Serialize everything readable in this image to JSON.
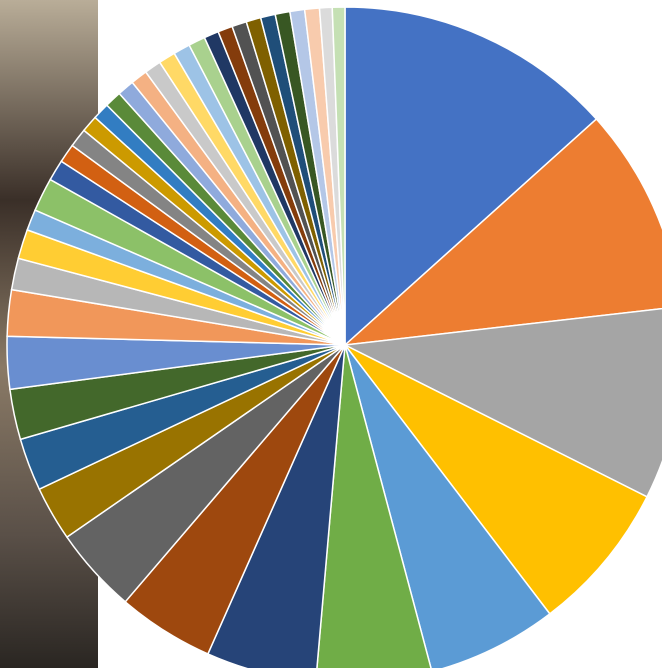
{
  "chart_data": {
    "type": "pie",
    "values": [
      13.3,
      9.8,
      9.2,
      7.2,
      6.2,
      5.5,
      5.25,
      4.6,
      4.1,
      2.6,
      2.5,
      2.4,
      2.5,
      2.2,
      1.5,
      1.4,
      1.0,
      1.6,
      1.0,
      0.9,
      0.9,
      0.8,
      0.8,
      0.8,
      0.8,
      0.8,
      0.8,
      0.8,
      0.8,
      0.8,
      0.7,
      0.7,
      0.7,
      0.7,
      0.7,
      0.7,
      0.7,
      0.7,
      0.6,
      0.6
    ],
    "colors": [
      "#4472c4",
      "#ed7d31",
      "#a5a5a5",
      "#ffc000",
      "#5b9bd5",
      "#70ad47",
      "#264478",
      "#9e480e",
      "#636363",
      "#997300",
      "#255e91",
      "#43682b",
      "#698ed0",
      "#f1975a",
      "#b7b7b7",
      "#ffcd33",
      "#7cafdd",
      "#8cc168",
      "#335aa1",
      "#d26012",
      "#848484",
      "#cc9a00",
      "#327dc2",
      "#5a8a39",
      "#8faadc",
      "#f4b183",
      "#c9c9c9",
      "#ffd966",
      "#9dc3e6",
      "#a9d18e",
      "#203864",
      "#843c0c",
      "#525252",
      "#7f6000",
      "#1f4e79",
      "#385723",
      "#b4c7e7",
      "#f8cbad",
      "#dbdbdb",
      "#c5e0b4"
    ]
  }
}
